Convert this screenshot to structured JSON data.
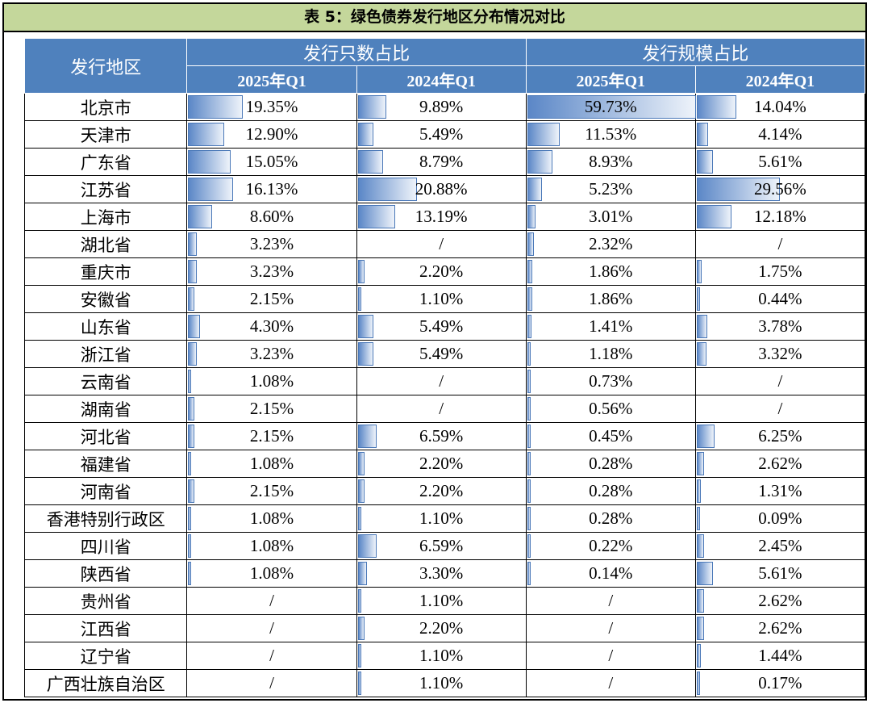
{
  "title": "表 5：绿色债券发行地区分布情况对比",
  "header": {
    "region": "发行地区",
    "group_count": "发行只数占比",
    "group_scale": "发行规模占比",
    "years": [
      "2025年Q1",
      "2024年Q1",
      "2025年Q1",
      "2024年Q1"
    ]
  },
  "rows": [
    {
      "name": "北京市",
      "v": [
        "19.35%",
        "9.89%",
        "59.73%",
        "14.04%"
      ],
      "f": [
        0.324,
        0.166,
        1.0,
        0.235
      ]
    },
    {
      "name": "天津市",
      "v": [
        "12.90%",
        "5.49%",
        "11.53%",
        "4.14%"
      ],
      "f": [
        0.216,
        0.092,
        0.193,
        0.069
      ]
    },
    {
      "name": "广东省",
      "v": [
        "15.05%",
        "8.79%",
        "8.93%",
        "5.61%"
      ],
      "f": [
        0.252,
        0.147,
        0.15,
        0.094
      ]
    },
    {
      "name": "江苏省",
      "v": [
        "16.13%",
        "20.88%",
        "5.23%",
        "29.56%"
      ],
      "f": [
        0.27,
        0.35,
        0.088,
        0.495
      ]
    },
    {
      "name": "上海市",
      "v": [
        "8.60%",
        "13.19%",
        "3.01%",
        "12.18%"
      ],
      "f": [
        0.144,
        0.221,
        0.05,
        0.204
      ]
    },
    {
      "name": "湖北省",
      "v": [
        "3.23%",
        "/",
        "2.32%",
        "/"
      ],
      "f": [
        0.054,
        0,
        0.039,
        0
      ]
    },
    {
      "name": "重庆市",
      "v": [
        "3.23%",
        "2.20%",
        "1.86%",
        "1.75%"
      ],
      "f": [
        0.054,
        0.037,
        0.031,
        0.029
      ]
    },
    {
      "name": "安徽省",
      "v": [
        "2.15%",
        "1.10%",
        "1.86%",
        "0.44%"
      ],
      "f": [
        0.036,
        0.018,
        0.031,
        0.007
      ]
    },
    {
      "name": "山东省",
      "v": [
        "4.30%",
        "5.49%",
        "1.41%",
        "3.78%"
      ],
      "f": [
        0.072,
        0.092,
        0.024,
        0.063
      ]
    },
    {
      "name": "浙江省",
      "v": [
        "3.23%",
        "5.49%",
        "1.18%",
        "3.32%"
      ],
      "f": [
        0.054,
        0.092,
        0.02,
        0.056
      ]
    },
    {
      "name": "云南省",
      "v": [
        "1.08%",
        "/",
        "0.73%",
        "/"
      ],
      "f": [
        0.018,
        0,
        0.012,
        0
      ]
    },
    {
      "name": "湖南省",
      "v": [
        "2.15%",
        "/",
        "0.56%",
        "/"
      ],
      "f": [
        0.036,
        0,
        0.009,
        0
      ]
    },
    {
      "name": "河北省",
      "v": [
        "2.15%",
        "6.59%",
        "0.45%",
        "6.25%"
      ],
      "f": [
        0.036,
        0.11,
        0.008,
        0.105
      ]
    },
    {
      "name": "福建省",
      "v": [
        "1.08%",
        "2.20%",
        "0.28%",
        "2.62%"
      ],
      "f": [
        0.018,
        0.037,
        0.005,
        0.044
      ]
    },
    {
      "name": "河南省",
      "v": [
        "2.15%",
        "2.20%",
        "0.28%",
        "1.31%"
      ],
      "f": [
        0.036,
        0.037,
        0.005,
        0.022
      ]
    },
    {
      "name": "香港特别行政区",
      "v": [
        "1.08%",
        "1.10%",
        "0.28%",
        "0.09%"
      ],
      "f": [
        0.018,
        0.018,
        0.005,
        0.002
      ]
    },
    {
      "name": "四川省",
      "v": [
        "1.08%",
        "6.59%",
        "0.22%",
        "2.45%"
      ],
      "f": [
        0.018,
        0.11,
        0.004,
        0.041
      ]
    },
    {
      "name": "陕西省",
      "v": [
        "1.08%",
        "3.30%",
        "0.14%",
        "5.61%"
      ],
      "f": [
        0.018,
        0.055,
        0.002,
        0.094
      ]
    },
    {
      "name": "贵州省",
      "v": [
        "/",
        "1.10%",
        "/",
        "2.62%"
      ],
      "f": [
        0,
        0.018,
        0,
        0.044
      ]
    },
    {
      "name": "江西省",
      "v": [
        "/",
        "2.20%",
        "/",
        "2.62%"
      ],
      "f": [
        0,
        0.037,
        0,
        0.044
      ]
    },
    {
      "name": "辽宁省",
      "v": [
        "/",
        "1.10%",
        "/",
        "1.44%"
      ],
      "f": [
        0,
        0.018,
        0,
        0.024
      ]
    },
    {
      "name": "广西壮族自治区",
      "v": [
        "/",
        "1.10%",
        "/",
        "0.17%"
      ],
      "f": [
        0,
        0.018,
        0,
        0.003
      ]
    }
  ]
}
